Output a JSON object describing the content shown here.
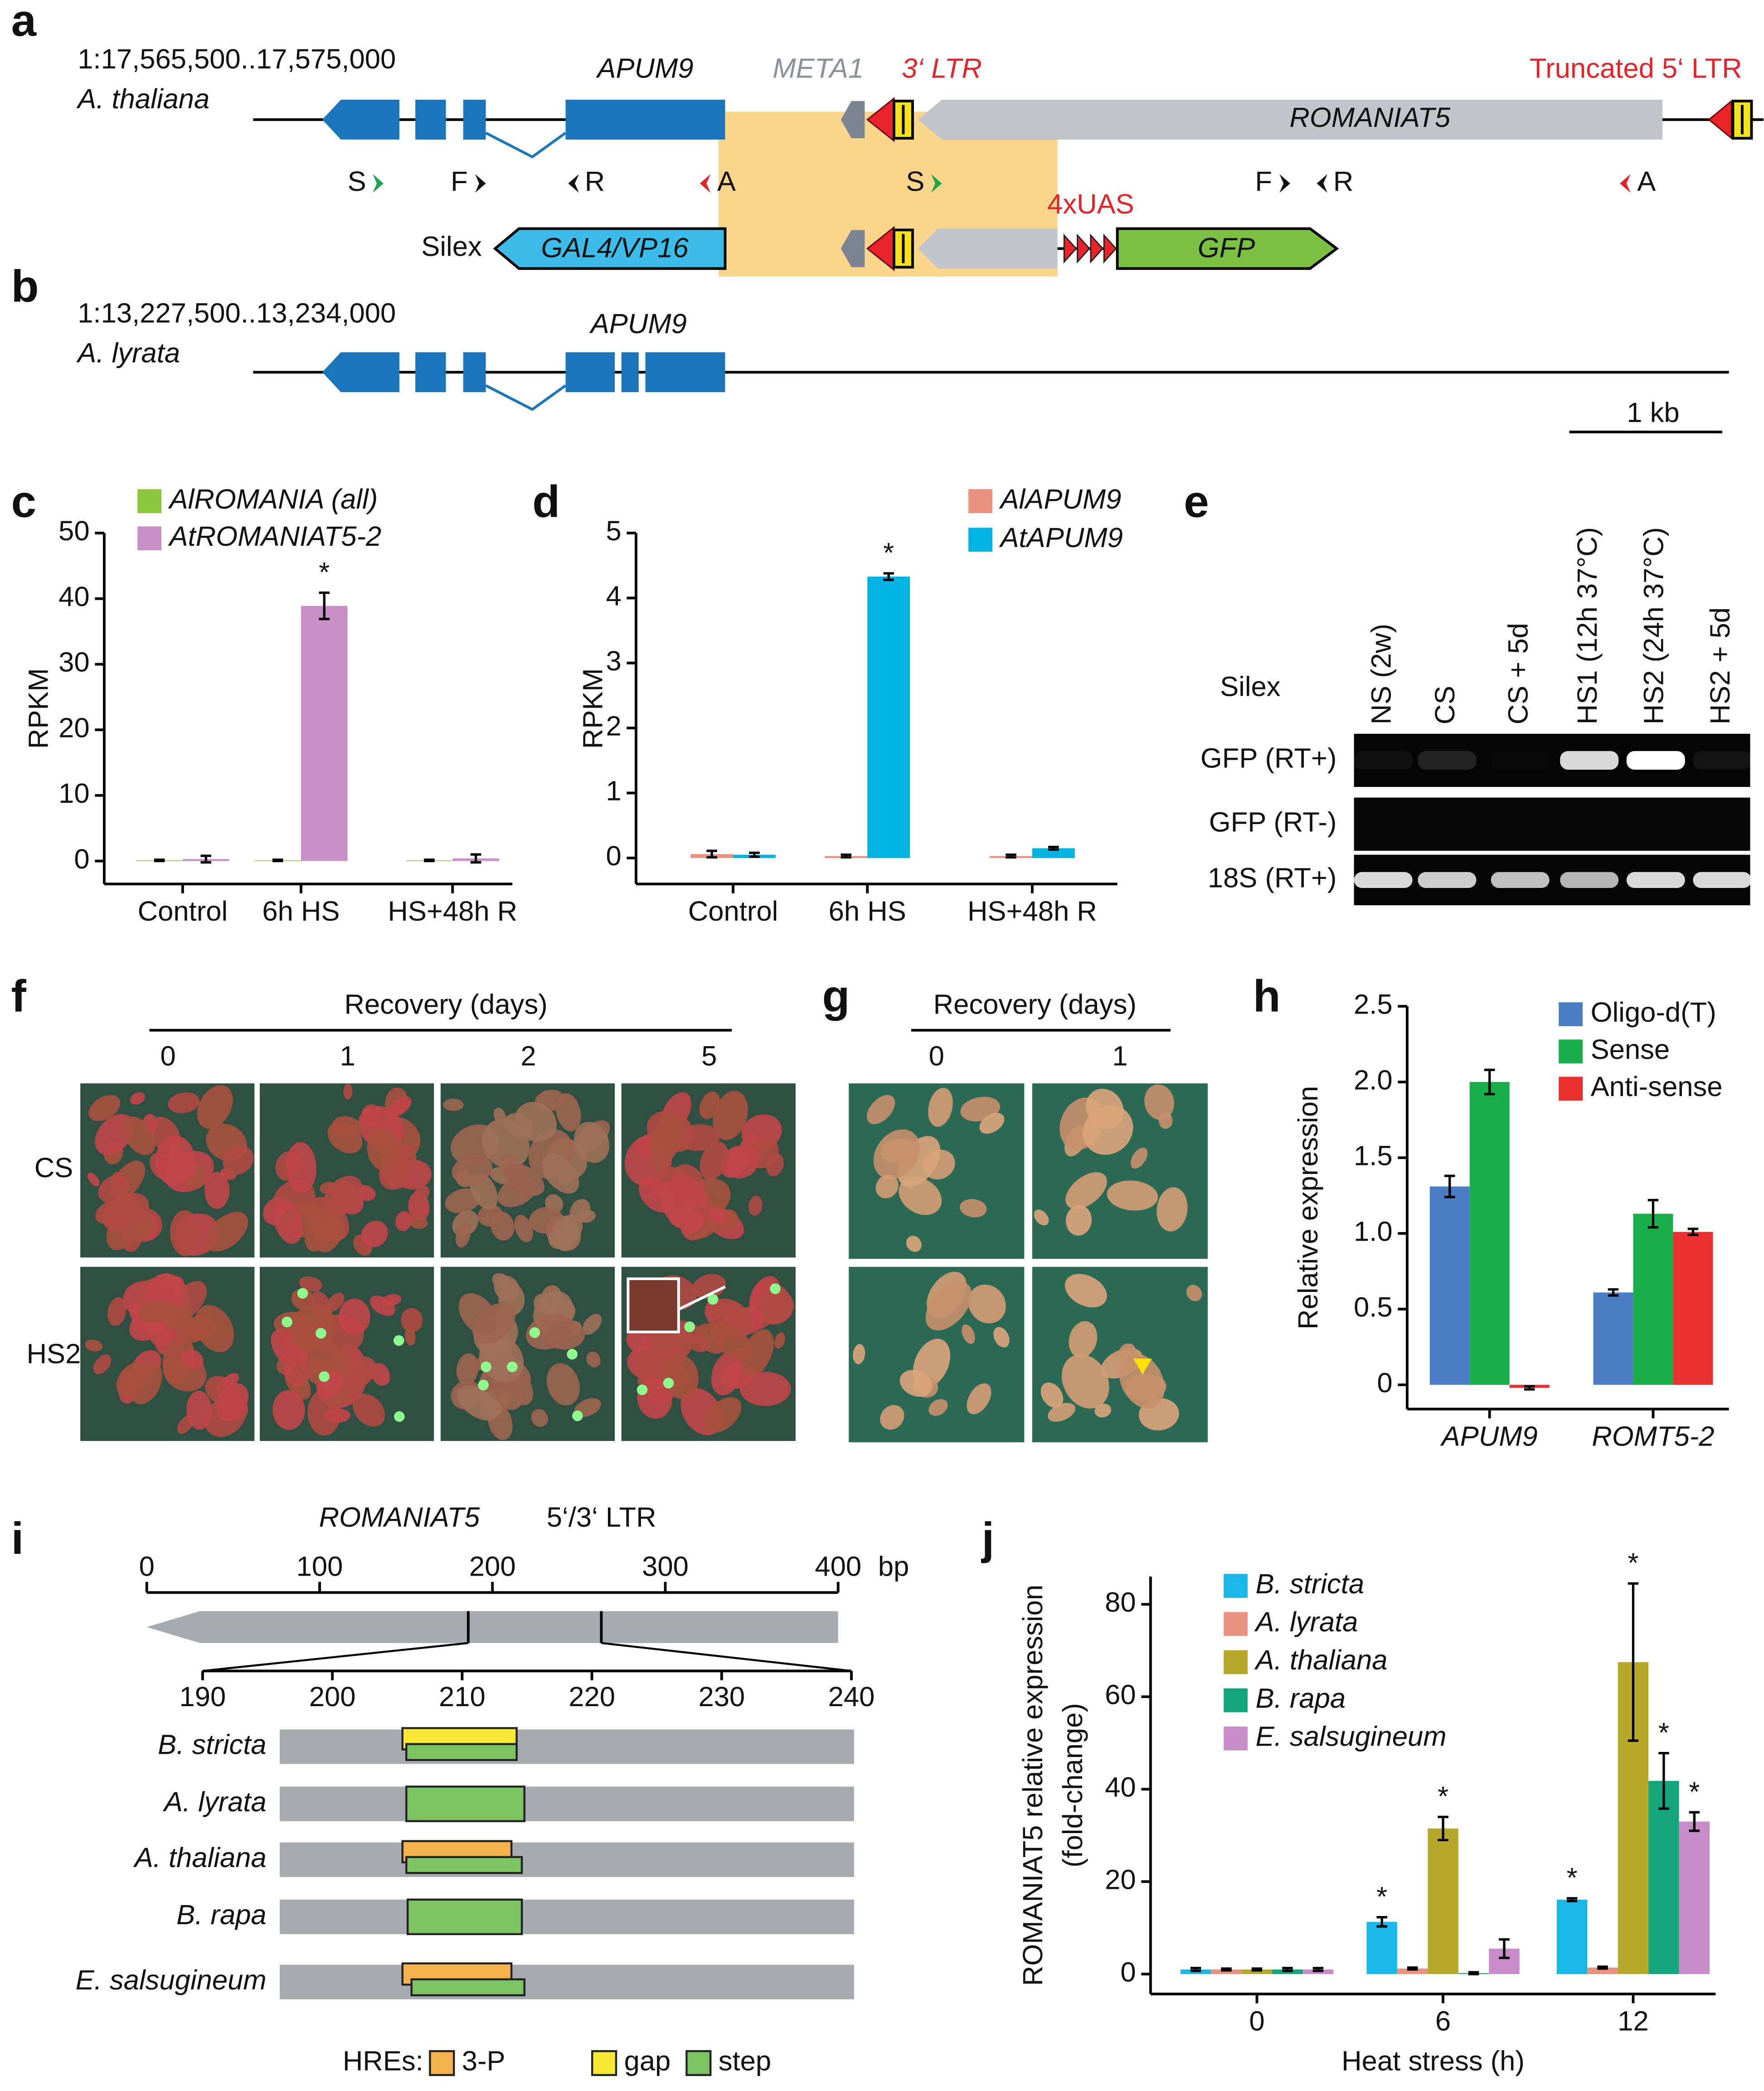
{
  "panel_labels": [
    "a",
    "b",
    "c",
    "d",
    "e",
    "f",
    "g",
    "h",
    "i",
    "j"
  ],
  "diagram_a": {
    "coordinates": "1:17,565,500..17,575,000",
    "species": "A. thaliana",
    "gene": "APUM9",
    "meta": "META1",
    "ltr3": "3‘ LTR",
    "te": "ROMANIAT5",
    "ltr5": "Truncated 5‘ LTR",
    "primers": [
      "S",
      "F",
      "R",
      "A",
      "S",
      "F",
      "R",
      "A"
    ],
    "construct": "Silex",
    "driver": "GAL4/VP16",
    "uas": "4xUAS",
    "reporter": "GFP"
  },
  "diagram_b": {
    "coordinates": "1:13,227,500..13,234,000",
    "species": "A. lyrata",
    "gene": "APUM9",
    "scale": "1 kb"
  },
  "gel_e": {
    "construct": "Silex",
    "lanes": [
      "NS (2w)",
      "CS",
      "CS + 5d",
      "HS1 (12h 37°C)",
      "HS2 (24h 37°C)",
      "HS2 + 5d"
    ],
    "rows": [
      "GFP (RT+)",
      "GFP (RT-)",
      "18S (RT+)"
    ]
  },
  "photos_f": {
    "title": "Recovery (days)",
    "days": [
      "0",
      "1",
      "2",
      "5"
    ],
    "rows": [
      "CS",
      "HS2"
    ]
  },
  "photos_g": {
    "title": "Recovery (days)",
    "days": [
      "0",
      "1"
    ]
  },
  "diagram_i": {
    "title": "ROMANIAT5",
    "subtitle": "5‘/3‘ LTR",
    "xlim": [
      0,
      400
    ],
    "xticks": [
      0,
      100,
      200,
      300,
      400
    ],
    "unit": "bp",
    "ltr_region": [
      186,
      263
    ],
    "zoom_xlim": [
      190,
      240
    ],
    "zoom_xticks": [
      190,
      200,
      210,
      220,
      230,
      240
    ],
    "species": [
      {
        "name": "B. stricta",
        "hres": [
          {
            "type": 1,
            "start": 205.4,
            "end": 214.2
          },
          {
            "type": 2,
            "start": 205.7,
            "end": 214.2
          }
        ]
      },
      {
        "name": "A. lyrata",
        "hres": [
          {
            "type": 2,
            "start": 205.7,
            "end": 214.8
          }
        ]
      },
      {
        "name": "A. thaliana",
        "hres": [
          {
            "type": 0,
            "start": 205.4,
            "end": 213.8
          },
          {
            "type": 2,
            "start": 205.7,
            "end": 214.6
          }
        ]
      },
      {
        "name": "B. rapa",
        "hres": [
          {
            "type": 2,
            "start": 205.8,
            "end": 214.6
          }
        ]
      },
      {
        "name": "E. salsugineum",
        "hres": [
          {
            "type": 0,
            "start": 205.4,
            "end": 213.8
          },
          {
            "type": 2,
            "start": 206.1,
            "end": 214.8
          }
        ]
      }
    ],
    "legend_title": "HREs:",
    "hre_types": [
      {
        "name": "3-P",
        "color": "#f4b04c"
      },
      {
        "name": "gap",
        "color": "#f6e835"
      },
      {
        "name": "step",
        "color": "#7cc462"
      }
    ]
  },
  "chart_data": [
    {
      "type": "bar",
      "ylabel": "RPKM",
      "categories": [
        "Control",
        "6h HS",
        "HS+48h R"
      ],
      "series": [
        {
          "name": "AlROMANIA (all)",
          "color": "#8cc63e",
          "values": [
            0.1,
            0.1,
            0.1
          ],
          "errors": [
            0.1,
            0.1,
            0.1
          ]
        },
        {
          "name": "AtROMANIAT5-2",
          "color": "#c990c6",
          "values": [
            0.3,
            38.9,
            0.4
          ],
          "errors": [
            0.5,
            2.0,
            0.6
          ]
        }
      ],
      "ylim": [
        -3.5,
        50
      ],
      "yticks": [
        0,
        10,
        20,
        30,
        40,
        50
      ],
      "annotations": [
        {
          "text": "*",
          "series": 1,
          "category": 1
        }
      ]
    },
    {
      "type": "bar",
      "ylabel": "RPKM",
      "categories": [
        "Control",
        "6h HS",
        "HS+48h R"
      ],
      "series": [
        {
          "name": "AlAPUM9",
          "color": "#e8927f",
          "values": [
            0.06,
            0.03,
            0.03
          ],
          "errors": [
            0.05,
            0.02,
            0.02
          ]
        },
        {
          "name": "AtAPUM9",
          "color": "#00b3e3",
          "values": [
            0.05,
            4.33,
            0.15
          ],
          "errors": [
            0.03,
            0.05,
            0.02
          ]
        }
      ],
      "ylim": [
        -0.4,
        5
      ],
      "yticks": [
        0,
        1,
        2,
        3,
        4,
        5
      ],
      "annotations": [
        {
          "text": "*",
          "series": 1,
          "category": 1
        }
      ]
    },
    {
      "type": "bar",
      "ylabel": "Relative expression",
      "categories": [
        "APUM9",
        "ROMT5-2"
      ],
      "series": [
        {
          "name": "Oligo-d(T)",
          "color": "#4a7dc4",
          "values": [
            1.31,
            0.61
          ],
          "errors": [
            0.07,
            0.02
          ]
        },
        {
          "name": "Sense",
          "color": "#1aaf4b",
          "values": [
            2.0,
            1.13
          ],
          "errors": [
            0.08,
            0.09
          ]
        },
        {
          "name": "Anti-sense",
          "color": "#e8302f",
          "values": [
            -0.02,
            1.01
          ],
          "errors": [
            0.01,
            0.02
          ]
        }
      ],
      "ylim": [
        -0.16,
        2.5
      ],
      "yticks": [
        0,
        0.5,
        {
          "value": 1,
          "label": "1.0"
        },
        1.5,
        {
          "value": 2,
          "label": "2.0"
        },
        2.5
      ]
    },
    {
      "type": "bar",
      "ylabel": [
        "ROMANIAT5 relative expression",
        "(fold-change)"
      ],
      "xlabel": "Heat stress (h)",
      "categories": [
        "0",
        "6",
        "12"
      ],
      "series": [
        {
          "name": "B. stricta",
          "color": "#1ab8e6",
          "values": [
            1,
            11.3,
            16.1
          ],
          "errors": [
            0.3,
            1,
            0.3
          ]
        },
        {
          "name": "A. lyrata",
          "color": "#e8927f",
          "values": [
            1,
            1.2,
            1.4
          ],
          "errors": [
            0.2,
            0.2,
            0.2
          ]
        },
        {
          "name": "A. thaliana",
          "color": "#b5a82a",
          "values": [
            1,
            31.5,
            67.5
          ],
          "errors": [
            0.2,
            2.5,
            17
          ]
        },
        {
          "name": "B. rapa",
          "color": "#13a67c",
          "values": [
            1,
            0.2,
            41.8
          ],
          "errors": [
            0.3,
            0.2,
            6
          ]
        },
        {
          "name": "E. salsugineum",
          "color": "#c88cc8",
          "values": [
            1,
            5.5,
            33
          ],
          "errors": [
            0.3,
            2,
            2
          ]
        }
      ],
      "ylim": [
        -4.3,
        86
      ],
      "yticks": [
        0,
        20,
        40,
        60,
        80
      ],
      "annotations": [
        {
          "text": "*",
          "series": 0,
          "category": 1
        },
        {
          "text": "*",
          "series": 2,
          "category": 1
        },
        {
          "text": "*",
          "series": 0,
          "category": 2
        },
        {
          "text": "*",
          "series": 2,
          "category": 2
        },
        {
          "text": "*",
          "series": 3,
          "category": 2
        },
        {
          "text": "*",
          "series": 4,
          "category": 2
        }
      ]
    }
  ]
}
